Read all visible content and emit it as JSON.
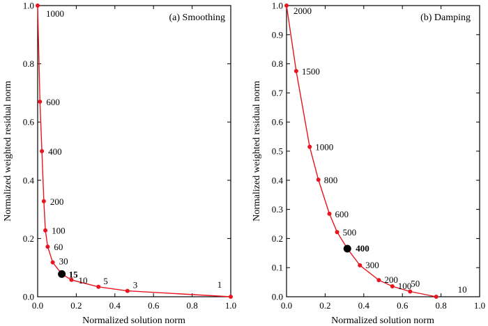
{
  "chart_data": [
    {
      "type": "line",
      "title": "(a) Smoothing",
      "xlabel": "Normalized solution norm",
      "ylabel": "Normalized weighted residual norm",
      "xlim": [
        0,
        1
      ],
      "ylim": [
        0,
        1
      ],
      "xticks": [
        "0.0",
        "0.2",
        "0.4",
        "0.6",
        "0.8",
        "1.0"
      ],
      "yticks": [
        "0.0",
        "0.2",
        "0.4",
        "0.6",
        "0.8",
        "1.0"
      ],
      "line_color": "#e8141e",
      "optimal_color": "#000000",
      "points": [
        {
          "x": 0.0,
          "y": 1.0,
          "label": "1000"
        },
        {
          "x": 0.012,
          "y": 0.67,
          "label": "600"
        },
        {
          "x": 0.022,
          "y": 0.5,
          "label": "400"
        },
        {
          "x": 0.032,
          "y": 0.328,
          "label": "200"
        },
        {
          "x": 0.04,
          "y": 0.228,
          "label": "100"
        },
        {
          "x": 0.052,
          "y": 0.172,
          "label": "60"
        },
        {
          "x": 0.078,
          "y": 0.118,
          "label": "30"
        },
        {
          "x": 0.125,
          "y": 0.078,
          "label": "15",
          "optimal": true
        },
        {
          "x": 0.175,
          "y": 0.058,
          "label": "10"
        },
        {
          "x": 0.315,
          "y": 0.034,
          "label": "5"
        },
        {
          "x": 0.465,
          "y": 0.02,
          "label": "3"
        },
        {
          "x": 1.0,
          "y": 0.0,
          "label": "1"
        }
      ]
    },
    {
      "type": "line",
      "title": "(b) Damping",
      "xlabel": "Normalized solution norm",
      "ylabel": "Normalized weighted residual norm",
      "xlim": [
        0,
        1
      ],
      "ylim": [
        0,
        1
      ],
      "xticks": [
        "0.0",
        "0.2",
        "0.4",
        "0.6",
        "0.8",
        "1.0"
      ],
      "yticks": [
        "0.0",
        "0.1",
        "0.2",
        "0.3",
        "0.4",
        "0.5",
        "0.6",
        "0.7",
        "0.8",
        "0.9",
        "1.0"
      ],
      "line_color": "#e8141e",
      "optimal_color": "#000000",
      "points": [
        {
          "x": 0.0,
          "y": 1.0,
          "label": "2000"
        },
        {
          "x": 0.05,
          "y": 0.775,
          "label": "1500"
        },
        {
          "x": 0.12,
          "y": 0.515,
          "label": "1000"
        },
        {
          "x": 0.165,
          "y": 0.402,
          "label": "800"
        },
        {
          "x": 0.222,
          "y": 0.285,
          "label": "600"
        },
        {
          "x": 0.262,
          "y": 0.222,
          "label": "500"
        },
        {
          "x": 0.315,
          "y": 0.165,
          "label": "400",
          "optimal": true
        },
        {
          "x": 0.38,
          "y": 0.108,
          "label": "300"
        },
        {
          "x": 0.478,
          "y": 0.057,
          "label": "200"
        },
        {
          "x": 0.548,
          "y": 0.036,
          "label": "100"
        },
        {
          "x": 0.64,
          "y": 0.018,
          "label": "50"
        },
        {
          "x": 0.775,
          "y": 0.0,
          "label": "10"
        }
      ]
    }
  ]
}
